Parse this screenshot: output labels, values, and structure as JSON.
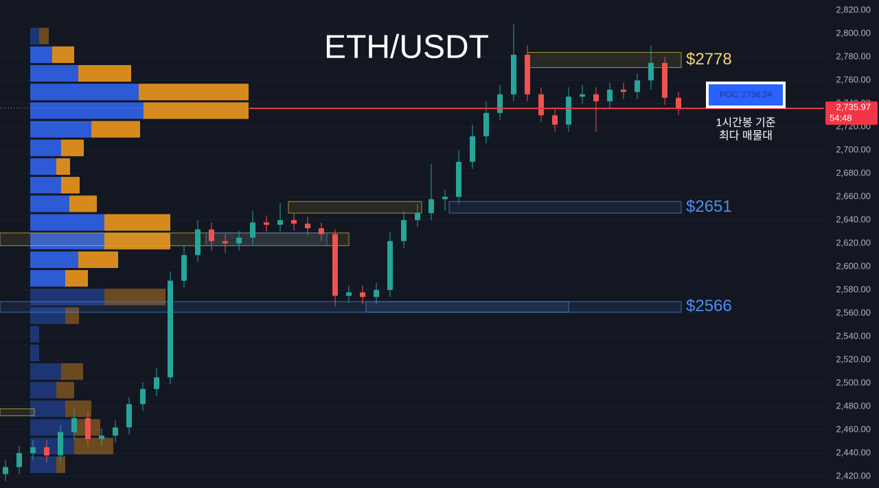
{
  "chart_data": {
    "type": "candlestick",
    "title": "ETH/USDT",
    "ylim": [
      2410,
      2829
    ],
    "yticks": [
      {
        "value": 2420,
        "label": "2,420.00"
      },
      {
        "value": 2440,
        "label": "2,440.00"
      },
      {
        "value": 2460,
        "label": "2,460.00"
      },
      {
        "value": 2480,
        "label": "2,480.00"
      },
      {
        "value": 2500,
        "label": "2,500.00"
      },
      {
        "value": 2520,
        "label": "2,520.00"
      },
      {
        "value": 2540,
        "label": "2,540.00"
      },
      {
        "value": 2560,
        "label": "2,560.00"
      },
      {
        "value": 2580,
        "label": "2,580.00"
      },
      {
        "value": 2600,
        "label": "2,600.00"
      },
      {
        "value": 2620,
        "label": "2,620.00"
      },
      {
        "value": 2640,
        "label": "2,640.00"
      },
      {
        "value": 2660,
        "label": "2,660.00"
      },
      {
        "value": 2680,
        "label": "2,680.00"
      },
      {
        "value": 2700,
        "label": "2,700.00"
      },
      {
        "value": 2720,
        "label": "2,720.00"
      },
      {
        "value": 2740,
        "label": "2,740.00"
      },
      {
        "value": 2760,
        "label": "2,760.00"
      },
      {
        "value": 2780,
        "label": "2,780.00"
      },
      {
        "value": 2800,
        "label": "2,800.00"
      },
      {
        "value": 2820,
        "label": "2,820.00"
      }
    ],
    "grid": true,
    "up_color": "#26a69a",
    "down_color": "#ef5350",
    "open": [
      2422,
      2428,
      2440,
      2445,
      2438,
      2458,
      2470,
      2452,
      2455,
      2462,
      2482,
      2495,
      2505,
      2588,
      2610,
      2632,
      2622,
      2620,
      2625,
      2638,
      2636,
      2640,
      2637,
      2633,
      2628,
      2575,
      2578,
      2574,
      2580,
      2622,
      2640,
      2646,
      2658,
      2660,
      2690,
      2712,
      2732,
      2748,
      2782,
      2748,
      2730,
      2722,
      2746,
      2748,
      2742,
      2752,
      2750,
      2760,
      2775,
      2745
    ],
    "high": [
      2434,
      2446,
      2451,
      2451,
      2464,
      2478,
      2476,
      2461,
      2468,
      2488,
      2501,
      2513,
      2596,
      2618,
      2640,
      2638,
      2628,
      2631,
      2648,
      2644,
      2655,
      2646,
      2643,
      2638,
      2632,
      2584,
      2584,
      2586,
      2630,
      2648,
      2654,
      2688,
      2666,
      2700,
      2722,
      2742,
      2756,
      2808,
      2790,
      2754,
      2736,
      2754,
      2756,
      2754,
      2758,
      2758,
      2766,
      2790,
      2780,
      2750
    ],
    "low": [
      2416,
      2422,
      2434,
      2432,
      2432,
      2452,
      2446,
      2446,
      2449,
      2456,
      2476,
      2489,
      2499,
      2582,
      2604,
      2614,
      2612,
      2614,
      2619,
      2630,
      2630,
      2631,
      2627,
      2622,
      2566,
      2569,
      2568,
      2568,
      2574,
      2616,
      2634,
      2640,
      2648,
      2654,
      2684,
      2706,
      2726,
      2742,
      2742,
      2724,
      2716,
      2716,
      2740,
      2716,
      2736,
      2744,
      2744,
      2752,
      2739,
      2730
    ],
    "close": [
      2428,
      2440,
      2445,
      2438,
      2458,
      2470,
      2452,
      2455,
      2462,
      2482,
      2495,
      2505,
      2588,
      2610,
      2632,
      2622,
      2620,
      2625,
      2638,
      2636,
      2640,
      2637,
      2633,
      2628,
      2575,
      2578,
      2574,
      2580,
      2622,
      2640,
      2646,
      2658,
      2660,
      2690,
      2712,
      2732,
      2748,
      2782,
      2748,
      2730,
      2722,
      2746,
      2748,
      2742,
      2752,
      2750,
      2760,
      2775,
      2745,
      2736
    ],
    "last_price": {
      "value": 2735.97,
      "label": "2,735.97"
    },
    "last_price_color": "#f23645",
    "countdown": "54:48",
    "poc": {
      "value": 2736.24,
      "label": "POC: 2736.24"
    },
    "poc_note": [
      "1시간봉 기준",
      "최다 매물대"
    ],
    "zones": [
      {
        "price_range": [
          2771,
          2784
        ],
        "x_range": [
          38,
          49.2
        ],
        "color": "#c9b037",
        "label": "$2778",
        "label_color": "#f3d27a"
      },
      {
        "price_range": [
          2646,
          2656
        ],
        "x_range": [
          20.6,
          30.3
        ],
        "color": "#c9b037"
      },
      {
        "price_range": [
          2646,
          2656
        ],
        "x_range": [
          32.3,
          49.2
        ],
        "color": "#4a7fd6",
        "label": "$2651",
        "label_color": "#4d8ef0"
      },
      {
        "price_range": [
          2618,
          2629
        ],
        "x_range": [
          -0.4,
          25
        ],
        "color": "#c9b037"
      },
      {
        "price_range": [
          2618,
          2629
        ],
        "x_range": [
          14.6,
          23.4
        ],
        "color": "#4a7fd6"
      },
      {
        "price_range": [
          2561,
          2570
        ],
        "x_range": [
          -0.4,
          49.2
        ],
        "color": "#4a7fd6",
        "label": "$2566",
        "label_color": "#4d8ef0"
      },
      {
        "price_range": [
          2561,
          2570
        ],
        "x_range": [
          26.25,
          41
        ],
        "color": "#4a7fd6"
      },
      {
        "price_range": [
          2472,
          2478
        ],
        "x_range": [
          -0.4,
          2.1
        ],
        "color": "#c9b037"
      }
    ],
    "volume_profile": {
      "bins": [
        2806,
        2790,
        2774,
        2758,
        2742,
        2726,
        2710,
        2694,
        2678,
        2662,
        2646,
        2630,
        2614,
        2598,
        2582,
        2566,
        2550,
        2534,
        2518,
        2502,
        2486,
        2470,
        2454,
        2438,
        2422
      ],
      "buy": [
        13,
        32,
        70,
        158,
        165,
        89,
        45,
        38,
        45,
        57,
        108,
        108,
        70,
        51,
        108,
        51,
        13,
        13,
        45,
        38,
        51,
        64,
        64,
        38
      ],
      "sell": [
        14,
        32,
        77,
        160,
        153,
        71,
        33,
        20,
        27,
        40,
        96,
        96,
        58,
        33,
        89,
        20,
        0,
        0,
        32,
        26,
        38,
        38,
        57,
        13
      ],
      "xlim": [
        0,
        320
      ],
      "value_area": [
        2582,
        2790
      ],
      "buy_color": "#2d5bd6",
      "sell_color": "#d68a1e"
    }
  }
}
